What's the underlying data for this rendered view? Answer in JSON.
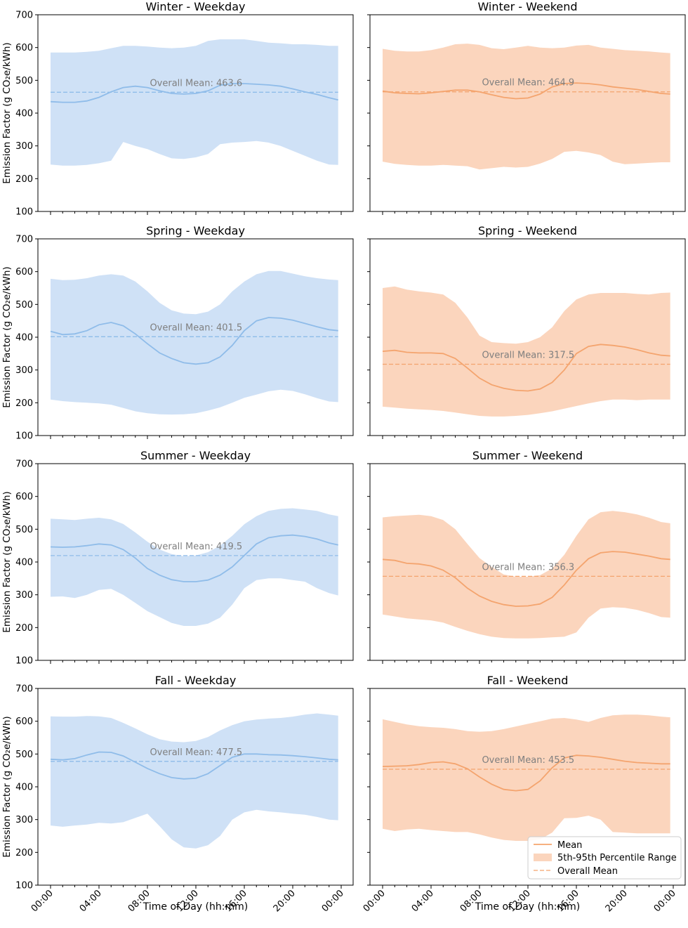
{
  "figure": {
    "y_axis_label": "Emission Factor (g CO₂e/kWh)",
    "x_axis_label": "Time of Day (hh:mm)",
    "legend": {
      "placement": "lower-right (Fall - Weekend panel)",
      "entries": [
        "Mean",
        "5th-95th Percentile Range",
        "Overall Mean"
      ]
    },
    "colors": {
      "weekday_band": "#cfe1f6",
      "weekday_line": "#8fbce9",
      "weekend_band": "#fbd5bd",
      "weekend_line": "#f4a46e",
      "overall_mean_text": "#7f7f7f"
    }
  },
  "chart_data": [
    {
      "type": "area",
      "title": "Winter - Weekday",
      "group": "weekday",
      "xlabel": "",
      "ylabel": "Emission Factor (g CO₂e/kWh)",
      "xlim": [
        0,
        24
      ],
      "ylim": [
        100,
        700
      ],
      "yticks": [
        100,
        200,
        300,
        400,
        500,
        600,
        700
      ],
      "xticks": [
        "00:00",
        "04:00",
        "08:00",
        "12:00",
        "16:00",
        "20:00",
        "00:00"
      ],
      "grid": false,
      "x_hours": [
        0,
        1,
        2,
        3,
        4,
        5,
        6,
        7,
        8,
        9,
        10,
        11,
        12,
        13,
        14,
        15,
        16,
        17,
        18,
        19,
        20,
        21,
        22,
        23,
        23.75
      ],
      "mean": [
        435,
        433,
        433,
        437,
        448,
        465,
        478,
        482,
        478,
        468,
        460,
        458,
        460,
        468,
        485,
        490,
        490,
        488,
        486,
        482,
        474,
        465,
        457,
        447,
        440
      ],
      "p5": [
        243,
        240,
        240,
        242,
        247,
        255,
        312,
        300,
        290,
        275,
        262,
        260,
        265,
        275,
        305,
        310,
        312,
        315,
        310,
        300,
        285,
        270,
        255,
        243,
        242
      ],
      "p95": [
        585,
        585,
        585,
        587,
        590,
        598,
        605,
        605,
        603,
        600,
        598,
        600,
        605,
        620,
        625,
        625,
        625,
        620,
        615,
        613,
        610,
        610,
        608,
        605,
        605
      ],
      "overall_mean": 463.6,
      "overall_mean_label": "Overall Mean: 463.6"
    },
    {
      "type": "area",
      "title": "Winter - Weekend",
      "group": "weekend",
      "xlabel": "",
      "ylabel": "",
      "xlim": [
        0,
        24
      ],
      "ylim": [
        100,
        700
      ],
      "yticks": [
        100,
        200,
        300,
        400,
        500,
        600,
        700
      ],
      "xticks": [
        "00:00",
        "04:00",
        "08:00",
        "12:00",
        "16:00",
        "20:00",
        "00:00"
      ],
      "grid": false,
      "x_hours": [
        0,
        1,
        2,
        3,
        4,
        5,
        6,
        7,
        8,
        9,
        10,
        11,
        12,
        13,
        14,
        15,
        16,
        17,
        18,
        19,
        20,
        21,
        22,
        23,
        23.75
      ],
      "mean": [
        467,
        462,
        460,
        459,
        462,
        466,
        470,
        470,
        465,
        456,
        448,
        444,
        446,
        458,
        480,
        490,
        492,
        490,
        486,
        480,
        476,
        472,
        466,
        460,
        458
      ],
      "p5": [
        252,
        245,
        242,
        240,
        240,
        242,
        240,
        238,
        228,
        232,
        236,
        234,
        236,
        246,
        260,
        282,
        285,
        280,
        272,
        252,
        244,
        246,
        248,
        250,
        250
      ],
      "p95": [
        596,
        590,
        588,
        588,
        592,
        600,
        610,
        612,
        608,
        598,
        595,
        600,
        605,
        600,
        598,
        600,
        606,
        608,
        600,
        596,
        592,
        590,
        588,
        585,
        583
      ],
      "overall_mean": 464.9,
      "overall_mean_label": "Overall Mean: 464.9"
    },
    {
      "type": "area",
      "title": "Spring - Weekday",
      "group": "weekday",
      "xlabel": "",
      "ylabel": "Emission Factor (g CO₂e/kWh)",
      "xlim": [
        0,
        24
      ],
      "ylim": [
        100,
        700
      ],
      "yticks": [
        100,
        200,
        300,
        400,
        500,
        600,
        700
      ],
      "xticks": [
        "00:00",
        "04:00",
        "08:00",
        "12:00",
        "16:00",
        "20:00",
        "00:00"
      ],
      "grid": false,
      "x_hours": [
        0,
        1,
        2,
        3,
        4,
        5,
        6,
        7,
        8,
        9,
        10,
        11,
        12,
        13,
        14,
        15,
        16,
        17,
        18,
        19,
        20,
        21,
        22,
        23,
        23.75
      ],
      "mean": [
        418,
        408,
        410,
        420,
        438,
        445,
        435,
        410,
        380,
        352,
        335,
        322,
        318,
        322,
        340,
        375,
        420,
        450,
        460,
        458,
        452,
        442,
        432,
        423,
        420
      ],
      "p5": [
        210,
        205,
        202,
        200,
        198,
        194,
        184,
        174,
        168,
        165,
        164,
        165,
        168,
        176,
        186,
        200,
        215,
        225,
        235,
        240,
        236,
        226,
        214,
        204,
        202
      ],
      "p95": [
        578,
        574,
        575,
        580,
        588,
        592,
        588,
        570,
        540,
        505,
        482,
        472,
        470,
        478,
        500,
        540,
        570,
        592,
        602,
        602,
        594,
        586,
        580,
        576,
        574
      ],
      "overall_mean": 401.5,
      "overall_mean_label": "Overall Mean: 401.5"
    },
    {
      "type": "area",
      "title": "Spring - Weekend",
      "group": "weekend",
      "xlabel": "",
      "ylabel": "",
      "xlim": [
        0,
        24
      ],
      "ylim": [
        100,
        700
      ],
      "yticks": [
        100,
        200,
        300,
        400,
        500,
        600,
        700
      ],
      "xticks": [
        "00:00",
        "04:00",
        "08:00",
        "12:00",
        "16:00",
        "20:00",
        "00:00"
      ],
      "grid": false,
      "x_hours": [
        0,
        1,
        2,
        3,
        4,
        5,
        6,
        7,
        8,
        9,
        10,
        11,
        12,
        13,
        14,
        15,
        16,
        17,
        18,
        19,
        20,
        21,
        22,
        23,
        23.75
      ],
      "mean": [
        357,
        360,
        354,
        352,
        352,
        350,
        335,
        306,
        275,
        255,
        244,
        238,
        236,
        242,
        262,
        300,
        350,
        372,
        378,
        375,
        370,
        362,
        352,
        345,
        343
      ],
      "p5": [
        188,
        185,
        182,
        180,
        178,
        175,
        170,
        165,
        160,
        158,
        158,
        160,
        163,
        168,
        174,
        182,
        190,
        198,
        205,
        210,
        210,
        208,
        210,
        210,
        210
      ],
      "p95": [
        550,
        555,
        545,
        540,
        536,
        530,
        505,
        460,
        405,
        385,
        382,
        380,
        385,
        400,
        430,
        480,
        515,
        530,
        535,
        535,
        535,
        532,
        530,
        535,
        536
      ],
      "overall_mean": 317.5,
      "overall_mean_label": "Overall Mean: 317.5"
    },
    {
      "type": "area",
      "title": "Summer - Weekday",
      "group": "weekday",
      "xlabel": "",
      "ylabel": "Emission Factor (g CO₂e/kWh)",
      "xlim": [
        0,
        24
      ],
      "ylim": [
        100,
        700
      ],
      "yticks": [
        100,
        200,
        300,
        400,
        500,
        600,
        700
      ],
      "xticks": [
        "00:00",
        "04:00",
        "08:00",
        "12:00",
        "16:00",
        "20:00",
        "00:00"
      ],
      "grid": false,
      "x_hours": [
        0,
        1,
        2,
        3,
        4,
        5,
        6,
        7,
        8,
        9,
        10,
        11,
        12,
        13,
        14,
        15,
        16,
        17,
        18,
        19,
        20,
        21,
        22,
        23,
        23.75
      ],
      "mean": [
        446,
        445,
        446,
        450,
        455,
        452,
        438,
        412,
        380,
        360,
        346,
        340,
        340,
        345,
        360,
        385,
        420,
        455,
        474,
        480,
        482,
        478,
        470,
        458,
        452
      ],
      "p5": [
        294,
        295,
        290,
        300,
        315,
        318,
        300,
        275,
        250,
        232,
        214,
        205,
        205,
        212,
        230,
        270,
        320,
        345,
        350,
        350,
        345,
        340,
        320,
        305,
        298
      ],
      "p95": [
        532,
        530,
        528,
        532,
        535,
        530,
        516,
        490,
        462,
        438,
        424,
        418,
        420,
        430,
        450,
        480,
        515,
        540,
        556,
        562,
        564,
        560,
        556,
        545,
        540
      ],
      "overall_mean": 419.5,
      "overall_mean_label": "Overall Mean: 419.5"
    },
    {
      "type": "area",
      "title": "Summer - Weekend",
      "group": "weekend",
      "xlabel": "",
      "ylabel": "",
      "xlim": [
        0,
        24
      ],
      "ylim": [
        100,
        700
      ],
      "yticks": [
        100,
        200,
        300,
        400,
        500,
        600,
        700
      ],
      "xticks": [
        "00:00",
        "04:00",
        "08:00",
        "12:00",
        "16:00",
        "20:00",
        "00:00"
      ],
      "grid": false,
      "x_hours": [
        0,
        1,
        2,
        3,
        4,
        5,
        6,
        7,
        8,
        9,
        10,
        11,
        12,
        13,
        14,
        15,
        16,
        17,
        18,
        19,
        20,
        21,
        22,
        23,
        23.75
      ],
      "mean": [
        408,
        405,
        396,
        394,
        388,
        375,
        352,
        320,
        296,
        280,
        270,
        265,
        266,
        272,
        292,
        330,
        375,
        410,
        428,
        432,
        430,
        424,
        418,
        410,
        408
      ],
      "p5": [
        240,
        234,
        228,
        225,
        222,
        215,
        202,
        190,
        180,
        172,
        168,
        167,
        167,
        168,
        170,
        172,
        185,
        230,
        258,
        262,
        260,
        254,
        244,
        232,
        230
      ],
      "p95": [
        536,
        540,
        542,
        544,
        540,
        528,
        500,
        455,
        412,
        385,
        362,
        355,
        355,
        360,
        380,
        422,
        480,
        530,
        552,
        556,
        552,
        545,
        535,
        522,
        518
      ],
      "overall_mean": 356.3,
      "overall_mean_label": "Overall Mean: 356.3"
    },
    {
      "type": "area",
      "title": "Fall - Weekday",
      "group": "weekday",
      "xlabel": "Time of Day (hh:mm)",
      "ylabel": "Emission Factor (g CO₂e/kWh)",
      "xlim": [
        0,
        24
      ],
      "ylim": [
        100,
        700
      ],
      "yticks": [
        100,
        200,
        300,
        400,
        500,
        600,
        700
      ],
      "xticks": [
        "00:00",
        "04:00",
        "08:00",
        "12:00",
        "16:00",
        "20:00",
        "00:00"
      ],
      "grid": false,
      "x_hours": [
        0,
        1,
        2,
        3,
        4,
        5,
        6,
        7,
        8,
        9,
        10,
        11,
        12,
        13,
        14,
        15,
        16,
        17,
        18,
        19,
        20,
        21,
        22,
        23,
        23.75
      ],
      "mean": [
        484,
        482,
        486,
        497,
        506,
        505,
        494,
        475,
        456,
        440,
        428,
        424,
        426,
        440,
        465,
        490,
        500,
        500,
        498,
        497,
        495,
        492,
        488,
        484,
        482
      ],
      "p5": [
        282,
        278,
        282,
        285,
        290,
        288,
        292,
        305,
        318,
        280,
        240,
        215,
        212,
        222,
        250,
        300,
        322,
        330,
        325,
        322,
        318,
        315,
        308,
        300,
        298
      ],
      "p95": [
        615,
        614,
        614,
        616,
        615,
        610,
        595,
        578,
        560,
        545,
        538,
        536,
        540,
        552,
        572,
        588,
        600,
        605,
        608,
        610,
        614,
        620,
        624,
        620,
        617
      ],
      "overall_mean": 477.5,
      "overall_mean_label": "Overall Mean: 477.5"
    },
    {
      "type": "area",
      "title": "Fall - Weekend",
      "group": "weekend",
      "xlabel": "Time of Day (hh:mm)",
      "ylabel": "",
      "xlim": [
        0,
        24
      ],
      "ylim": [
        100,
        700
      ],
      "yticks": [
        100,
        200,
        300,
        400,
        500,
        600,
        700
      ],
      "xticks": [
        "00:00",
        "04:00",
        "08:00",
        "12:00",
        "16:00",
        "20:00",
        "00:00"
      ],
      "grid": false,
      "x_hours": [
        0,
        1,
        2,
        3,
        4,
        5,
        6,
        7,
        8,
        9,
        10,
        11,
        12,
        13,
        14,
        15,
        16,
        17,
        18,
        19,
        20,
        21,
        22,
        23,
        23.75
      ],
      "mean": [
        462,
        463,
        464,
        468,
        474,
        476,
        470,
        455,
        430,
        408,
        392,
        388,
        392,
        418,
        458,
        488,
        496,
        494,
        490,
        484,
        478,
        474,
        472,
        470,
        470
      ],
      "p5": [
        272,
        265,
        270,
        272,
        268,
        265,
        262,
        262,
        255,
        245,
        238,
        235,
        235,
        240,
        260,
        304,
        305,
        312,
        300,
        262,
        260,
        258,
        258,
        258,
        258
      ],
      "p95": [
        606,
        598,
        590,
        585,
        582,
        580,
        576,
        570,
        568,
        570,
        576,
        584,
        592,
        600,
        608,
        610,
        605,
        598,
        610,
        618,
        620,
        620,
        618,
        614,
        612
      ],
      "overall_mean": 453.5,
      "overall_mean_label": "Overall Mean: 453.5"
    }
  ]
}
